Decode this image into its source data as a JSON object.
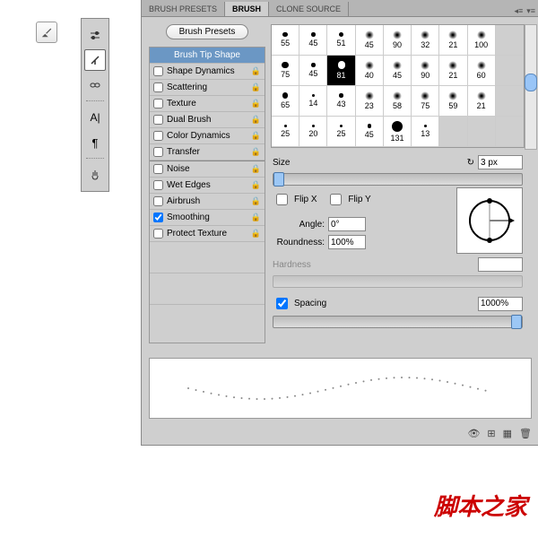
{
  "tabs": {
    "presets": "BRUSH PRESETS",
    "brush": "BRUSH",
    "clone": "CLONE SOURCE"
  },
  "presetBtn": "Brush Presets",
  "opts": {
    "tip": "Brush Tip Shape",
    "shape": "Shape Dynamics",
    "scatter": "Scattering",
    "texture": "Texture",
    "dual": "Dual Brush",
    "color": "Color Dynamics",
    "transfer": "Transfer",
    "noise": "Noise",
    "wet": "Wet Edges",
    "air": "Airbrush",
    "smooth": "Smoothing",
    "protect": "Protect Texture"
  },
  "grid": {
    "r": [
      [
        "55",
        "45",
        "51",
        "45",
        "90",
        "32",
        "21",
        "100",
        ""
      ],
      [
        "75",
        "45",
        "81",
        "40",
        "45",
        "90",
        "21",
        "60",
        ""
      ],
      [
        "65",
        "14",
        "43",
        "23",
        "58",
        "75",
        "59",
        "21",
        ""
      ],
      [
        "25",
        "20",
        "25",
        "45",
        "131",
        "13",
        "",
        "",
        ""
      ]
    ],
    "selected": "81"
  },
  "labels": {
    "size": "Size",
    "flipx": "Flip X",
    "flipy": "Flip Y",
    "angle": "Angle:",
    "round": "Roundness:",
    "hard": "Hardness",
    "spacing": "Spacing"
  },
  "vals": {
    "size": "3 px",
    "angle": "0°",
    "round": "100%",
    "spacing": "1000%"
  },
  "colors": {
    "accent": "#6b97c4"
  },
  "watermark": "脚本之家"
}
